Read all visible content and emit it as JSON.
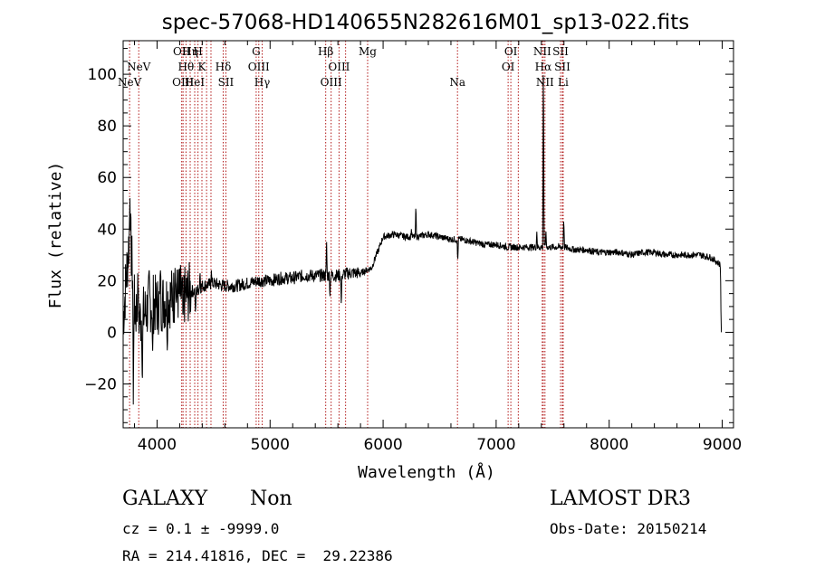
{
  "chart_data": {
    "type": "line",
    "title": "spec-57068-HD140655N282616M01_sp13-022.fits",
    "xlabel": "Wavelength (Å)",
    "ylabel": "Flux (relative)",
    "xlim": [
      3700,
      9100
    ],
    "ylim": [
      -37,
      113
    ],
    "xticks": [
      4000,
      5000,
      6000,
      7000,
      8000,
      9000
    ],
    "yticks": [
      -20,
      0,
      20,
      40,
      60,
      80,
      100
    ],
    "series": [
      {
        "name": "spectrum",
        "anchors": [
          [
            3700,
            5
          ],
          [
            3760,
            40
          ],
          [
            3800,
            10
          ],
          [
            3850,
            5
          ],
          [
            3900,
            8
          ],
          [
            3950,
            12
          ],
          [
            4000,
            10
          ],
          [
            4050,
            12
          ],
          [
            4100,
            13
          ],
          [
            4150,
            14
          ],
          [
            4200,
            15
          ],
          [
            4250,
            14
          ],
          [
            4300,
            16
          ],
          [
            4350,
            16
          ],
          [
            4400,
            18
          ],
          [
            4500,
            19
          ],
          [
            4600,
            18
          ],
          [
            4700,
            18
          ],
          [
            4800,
            19
          ],
          [
            4900,
            20
          ],
          [
            5000,
            20
          ],
          [
            5100,
            21
          ],
          [
            5200,
            21
          ],
          [
            5300,
            22
          ],
          [
            5400,
            22
          ],
          [
            5500,
            22
          ],
          [
            5600,
            22
          ],
          [
            5700,
            23
          ],
          [
            5800,
            23
          ],
          [
            5850,
            24
          ],
          [
            5900,
            25
          ],
          [
            5930,
            29
          ],
          [
            5960,
            32
          ],
          [
            6000,
            37
          ],
          [
            6100,
            38
          ],
          [
            6200,
            37
          ],
          [
            6300,
            37
          ],
          [
            6400,
            38
          ],
          [
            6500,
            37
          ],
          [
            6600,
            36
          ],
          [
            6700,
            36
          ],
          [
            6800,
            35
          ],
          [
            6900,
            34
          ],
          [
            7000,
            34
          ],
          [
            7100,
            33
          ],
          [
            7200,
            33
          ],
          [
            7300,
            33
          ],
          [
            7400,
            33
          ],
          [
            7500,
            33
          ],
          [
            7600,
            33
          ],
          [
            7700,
            32
          ],
          [
            7800,
            32
          ],
          [
            7900,
            31
          ],
          [
            8000,
            31
          ],
          [
            8100,
            31
          ],
          [
            8200,
            30
          ],
          [
            8300,
            31
          ],
          [
            8400,
            31
          ],
          [
            8500,
            30
          ],
          [
            8600,
            30
          ],
          [
            8700,
            30
          ],
          [
            8800,
            30
          ],
          [
            8900,
            29
          ],
          [
            8990,
            26
          ]
        ],
        "features": [
          {
            "x": 3760,
            "y": 52
          },
          {
            "x": 3790,
            "y": -28
          },
          {
            "x": 3830,
            "y": 24
          },
          {
            "x": 3870,
            "y": -22
          },
          {
            "x": 3930,
            "y": 25
          },
          {
            "x": 3960,
            "y": -12
          },
          {
            "x": 4030,
            "y": 24
          },
          {
            "x": 4090,
            "y": -7
          },
          {
            "x": 4160,
            "y": 28
          },
          {
            "x": 4230,
            "y": 3
          },
          {
            "x": 4340,
            "y": 6
          },
          {
            "x": 4380,
            "y": 24
          },
          {
            "x": 4480,
            "y": 24
          },
          {
            "x": 5500,
            "y": 35
          },
          {
            "x": 5530,
            "y": 14
          },
          {
            "x": 5630,
            "y": 9
          },
          {
            "x": 6250,
            "y": 40
          },
          {
            "x": 6290,
            "y": 50
          },
          {
            "x": 6660,
            "y": 27
          },
          {
            "x": 7360,
            "y": 39
          },
          {
            "x": 7418,
            "y": 113
          },
          {
            "x": 7440,
            "y": 40
          },
          {
            "x": 7598,
            "y": 45
          },
          {
            "x": 8990,
            "y": 5
          }
        ]
      }
    ],
    "spectral_lines": [
      {
        "x": 3757,
        "label": "NeV",
        "row": 3
      },
      {
        "x": 3838,
        "label": "NeV",
        "row": 2
      },
      {
        "x": 4218,
        "label": "OII",
        "row": 1
      },
      {
        "x": 4256,
        "label": "Hθ",
        "row": 2
      },
      {
        "x": 4230,
        "label": "OIII",
        "row": 3
      },
      {
        "x": 4293,
        "label": "Hη",
        "row": 1
      },
      {
        "x": 4333,
        "label": "HeI",
        "row": 3
      },
      {
        "x": 4362,
        "label": "H",
        "row": 1
      },
      {
        "x": 4397,
        "label": "K",
        "row": 2
      },
      {
        "x": 4438,
        "label": "",
        "row": 0
      },
      {
        "x": 4477,
        "label": "",
        "row": 0
      },
      {
        "x": 4585,
        "label": "Hδ",
        "row": 2
      },
      {
        "x": 4609,
        "label": "SII",
        "row": 3
      },
      {
        "x": 4877,
        "label": "G",
        "row": 1
      },
      {
        "x": 4900,
        "label": "OIII",
        "row": 2
      },
      {
        "x": 4930,
        "label": "Hγ",
        "row": 3
      },
      {
        "x": 5492,
        "label": "Hβ",
        "row": 1
      },
      {
        "x": 5610,
        "label": "OIII",
        "row": 2
      },
      {
        "x": 5540,
        "label": "OIII",
        "row": 3
      },
      {
        "x": 5668,
        "label": "",
        "row": 0
      },
      {
        "x": 5863,
        "label": "Mg",
        "row": 1
      },
      {
        "x": 6658,
        "label": "Na",
        "row": 3
      },
      {
        "x": 7130,
        "label": "OI",
        "row": 1
      },
      {
        "x": 7106,
        "label": "OI",
        "row": 2
      },
      {
        "x": 7196,
        "label": "",
        "row": 0
      },
      {
        "x": 7408,
        "label": "NII",
        "row": 1
      },
      {
        "x": 7417,
        "label": "Hα",
        "row": 2
      },
      {
        "x": 7432,
        "label": "NII",
        "row": 3
      },
      {
        "x": 7570,
        "label": "SII",
        "row": 1
      },
      {
        "x": 7586,
        "label": "SII",
        "row": 2
      },
      {
        "x": 7593,
        "label": "Li",
        "row": 3
      }
    ]
  },
  "info": {
    "class": "GALAXY",
    "subclass": "Non",
    "survey": "LAMOST DR3",
    "cz": "cz = 0.1 ± -9999.0",
    "obs_date": "Obs-Date: 20150214",
    "radec": "RA = 214.41816, DEC =  29.22386"
  }
}
